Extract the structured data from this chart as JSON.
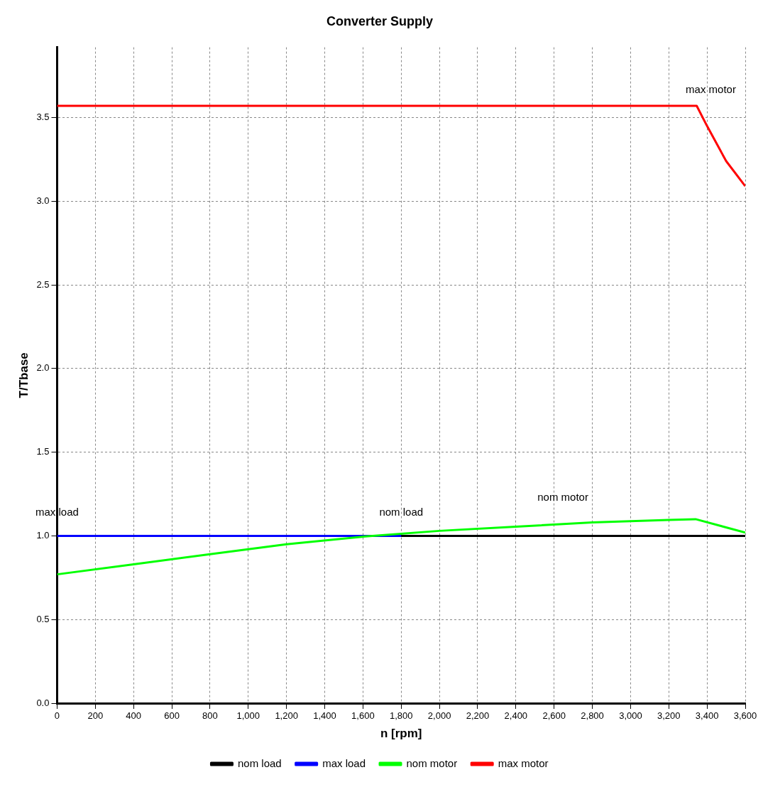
{
  "chart_data": {
    "type": "line",
    "title": "Converter Supply",
    "xlabel": "n [rpm]",
    "ylabel": "T/Tbase",
    "xlim": [
      0,
      3600
    ],
    "ylim": [
      0,
      3.92
    ],
    "xticks": [
      0,
      200,
      400,
      600,
      800,
      {
        "value": 1000,
        "label": "1,000"
      },
      {
        "value": 1200,
        "label": "1,200"
      },
      {
        "value": 1400,
        "label": "1,400"
      },
      {
        "value": 1600,
        "label": "1,600"
      },
      {
        "value": 1800,
        "label": "1,800"
      },
      {
        "value": 2000,
        "label": "2,000"
      },
      {
        "value": 2200,
        "label": "2,200"
      },
      {
        "value": 2400,
        "label": "2,400"
      },
      {
        "value": 2600,
        "label": "2,600"
      },
      {
        "value": 2800,
        "label": "2,800"
      },
      {
        "value": 3000,
        "label": "3,000"
      },
      {
        "value": 3200,
        "label": "3,200"
      },
      {
        "value": 3400,
        "label": "3,400"
      },
      {
        "value": 3600,
        "label": "3,600"
      }
    ],
    "yticks": [
      {
        "value": 0,
        "label": "0.0"
      },
      0.5,
      {
        "value": 1,
        "label": "1.0"
      },
      1.5,
      {
        "value": 2,
        "label": "2.0"
      },
      2.5,
      {
        "value": 3,
        "label": "3.0"
      },
      3.5
    ],
    "grid": true,
    "legend": "bottom",
    "marker": "none",
    "line_style": "solid",
    "series": [
      {
        "name": "nom load",
        "color": "#000000",
        "x": [
          0,
          3600
        ],
        "values": [
          1,
          1
        ]
      },
      {
        "name": "max load",
        "color": "#0000ff",
        "x": [
          0,
          1800
        ],
        "values": [
          1,
          1
        ]
      },
      {
        "name": "nom motor",
        "color": "#00ff00",
        "x": [
          0,
          400,
          800,
          1200,
          1600,
          2000,
          2400,
          2800,
          3200,
          3340,
          3600
        ],
        "values": [
          0.77,
          0.83,
          0.89,
          0.95,
          0.995,
          1.03,
          1.055,
          1.08,
          1.095,
          1.1,
          1.02
        ]
      },
      {
        "name": "max motor",
        "color": "#ff0000",
        "x": [
          0,
          3346,
          3400,
          3500,
          3600
        ],
        "values": [
          3.57,
          3.57,
          3.45,
          3.24,
          3.09
        ]
      }
    ],
    "annotations": [
      "max load",
      "nom load",
      "nom motor",
      "max motor"
    ]
  }
}
